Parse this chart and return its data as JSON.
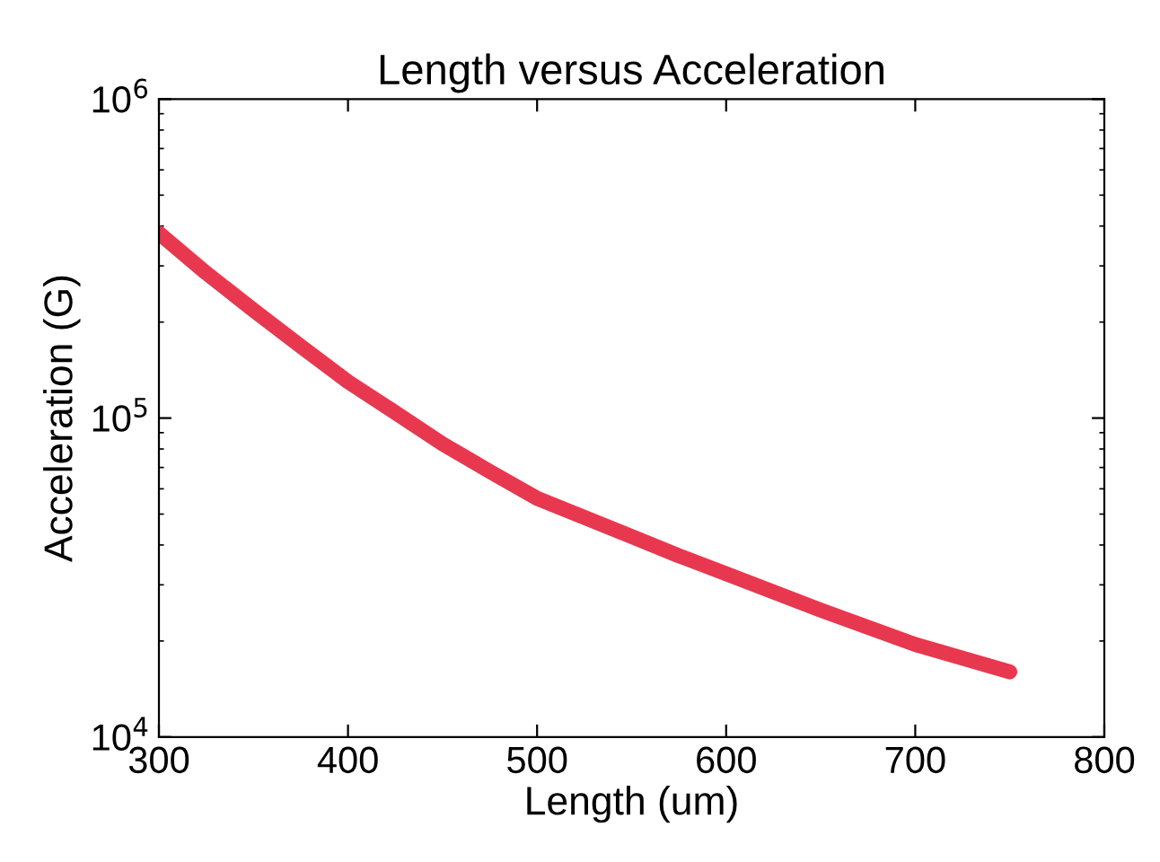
{
  "chart_data": {
    "type": "line",
    "title": "Length versus Acceleration",
    "xlabel": "Length (um)",
    "ylabel": "Acceleration (G)",
    "x": [
      300,
      325,
      350,
      375,
      400,
      425,
      450,
      475,
      500,
      550,
      575,
      600,
      650,
      700,
      750
    ],
    "series": [
      {
        "color": "#e8384f",
        "values": [
          380000,
          285000,
          218000,
          168000,
          130000,
          104000,
          83000,
          68000,
          56000,
          42500,
          37000,
          32500,
          25000,
          19500,
          16000
        ]
      }
    ],
    "xlim": [
      300,
      800
    ],
    "xticks": [
      300,
      400,
      500,
      600,
      700,
      800
    ],
    "ylim": [
      10000,
      1000000
    ],
    "yticks": [
      {
        "value": 10000,
        "label": "10$^{4}$"
      },
      {
        "value": 100000,
        "label": "10$^{5}$"
      },
      {
        "value": 1000000,
        "label": "10$^{6}$"
      }
    ],
    "log": "y",
    "grid": false,
    "legend": false,
    "marker": "none",
    "line_style": "solid"
  }
}
